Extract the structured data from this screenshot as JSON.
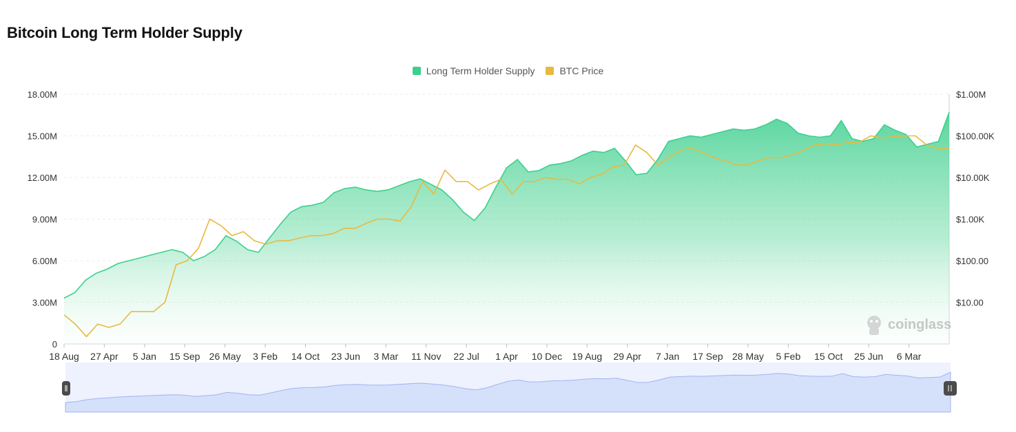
{
  "chart_data": {
    "type": "area",
    "title": "Bitcoin Long Term Holder Supply",
    "legend": {
      "placement": "top-center"
    },
    "grid": true,
    "x_labels": [
      "18 Aug",
      "27 Apr",
      "5 Jan",
      "15 Sep",
      "26 May",
      "3 Feb",
      "14 Oct",
      "23 Jun",
      "3 Mar",
      "11 Nov",
      "22 Jul",
      "1 Apr",
      "10 Dec",
      "19 Aug",
      "29 Apr",
      "7 Jan",
      "17 Sep",
      "28 May",
      "5 Feb",
      "15 Oct",
      "25 Jun",
      "6 Mar"
    ],
    "left_axis": {
      "ticks": [
        "0",
        "3.00M",
        "6.00M",
        "9.00M",
        "12.00M",
        "15.00M",
        "18.00M"
      ],
      "ylim": [
        0,
        18000000
      ]
    },
    "right_axis": {
      "scale": "log",
      "ticks": [
        "$10.00",
        "$100.00",
        "$1.00K",
        "$10.00K",
        "$100.00K",
        "$1.00M"
      ],
      "ylim": [
        1,
        1000000
      ]
    },
    "series": [
      {
        "name": "Long Term Holder Supply",
        "color": "#3ccf8e",
        "axis": "left",
        "type": "area",
        "values": [
          3.3,
          3.7,
          4.6,
          5.1,
          5.4,
          5.8,
          6.0,
          6.2,
          6.4,
          6.6,
          6.8,
          6.6,
          6.0,
          6.3,
          6.8,
          7.8,
          7.4,
          6.8,
          6.6,
          7.6,
          8.6,
          9.5,
          9.9,
          10.0,
          10.2,
          10.9,
          11.2,
          11.3,
          11.1,
          11.0,
          11.1,
          11.4,
          11.7,
          11.9,
          11.5,
          11.1,
          10.4,
          9.5,
          8.9,
          9.8,
          11.3,
          12.7,
          13.3,
          12.4,
          12.5,
          12.9,
          13.0,
          13.2,
          13.6,
          13.9,
          13.8,
          14.1,
          13.2,
          12.2,
          12.3,
          13.3,
          14.6,
          14.8,
          15.0,
          14.9,
          15.1,
          15.3,
          15.5,
          15.4,
          15.5,
          15.8,
          16.2,
          15.9,
          15.2,
          15.0,
          14.9,
          15.0,
          16.1,
          14.8,
          14.6,
          14.8,
          15.8,
          15.4,
          15.1,
          14.2,
          14.4,
          14.6,
          16.7
        ]
      },
      {
        "name": "BTC Price",
        "color": "#e8b93f",
        "axis": "right",
        "type": "line",
        "values": [
          5,
          3,
          1.5,
          3,
          2.5,
          3,
          6,
          6,
          6,
          10,
          80,
          100,
          200,
          1000,
          700,
          400,
          500,
          300,
          250,
          300,
          300,
          350,
          400,
          400,
          450,
          600,
          600,
          800,
          1000,
          1000,
          900,
          2000,
          8000,
          4000,
          15000,
          8000,
          8000,
          5000,
          7000,
          9000,
          4000,
          8000,
          8000,
          10000,
          9000,
          9000,
          7000,
          10000,
          12000,
          18000,
          20000,
          60000,
          40000,
          20000,
          30000,
          45000,
          50000,
          40000,
          30000,
          25000,
          20000,
          20000,
          25000,
          30000,
          30000,
          35000,
          45000,
          60000,
          65000,
          60000,
          70000,
          70000,
          100000,
          90000,
          95000,
          100000,
          100000,
          60000,
          50000,
          50000
        ]
      }
    ],
    "brand": "coinglass"
  }
}
